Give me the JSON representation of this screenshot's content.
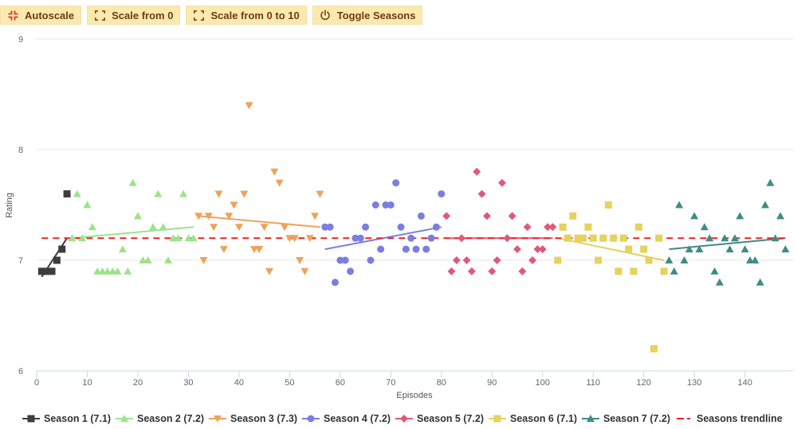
{
  "toolbar": {
    "buttons": [
      {
        "label": "Autoscale",
        "icon": "shrink-icon",
        "icon_color": "#d0392b"
      },
      {
        "label": "Scale from 0",
        "icon": "expand-icon",
        "icon_color": "#7a4a22"
      },
      {
        "label": "Scale from 0 to 10",
        "icon": "expand-icon",
        "icon_color": "#7a4a22"
      },
      {
        "label": "Toggle Seasons",
        "icon": "power-icon",
        "icon_color": "#7a4a22"
      }
    ]
  },
  "chart_data": {
    "type": "scatter",
    "title": "",
    "xlabel": "Episodes",
    "ylabel": "Rating",
    "xlim": [
      0,
      149.5
    ],
    "ylim": [
      6,
      9
    ],
    "x_ticks": [
      "0",
      "10",
      "20",
      "30",
      "40",
      "50",
      "60",
      "70",
      "80",
      "90",
      "100",
      "110",
      "120",
      "130",
      "140"
    ],
    "y_ticks": [
      "6",
      "7",
      "8",
      "9"
    ],
    "grid": "horizontal",
    "legend_position": "bottom",
    "series": [
      {
        "name": "Season 1 (7.1)",
        "color": "#3d3d3d",
        "marker": "square",
        "x": [
          1,
          2,
          3,
          4,
          5,
          6
        ],
        "y": [
          6.9,
          6.9,
          6.9,
          7.0,
          7.1,
          7.6
        ],
        "trend": [
          [
            1,
            6.85
          ],
          [
            6,
            7.2
          ]
        ]
      },
      {
        "name": "Season 2 (7.2)",
        "color": "#9de38a",
        "marker": "triangle-up",
        "x": [
          7,
          8,
          9,
          10,
          11,
          12,
          13,
          14,
          15,
          16,
          17,
          18,
          19,
          20,
          21,
          22,
          23,
          24,
          25,
          26,
          27,
          28,
          29,
          30,
          31
        ],
        "y": [
          7.2,
          7.6,
          7.2,
          7.5,
          7.3,
          6.9,
          6.9,
          6.9,
          6.9,
          6.9,
          7.1,
          6.9,
          7.7,
          7.4,
          7.0,
          7.0,
          7.3,
          7.6,
          7.3,
          7.0,
          7.2,
          7.2,
          7.6,
          7.2,
          7.2
        ],
        "trend": [
          [
            7,
            7.2
          ],
          [
            31,
            7.3
          ]
        ]
      },
      {
        "name": "Season 3 (7.3)",
        "color": "#eea25a",
        "marker": "triangle-down",
        "x": [
          32,
          33,
          34,
          35,
          36,
          37,
          38,
          39,
          40,
          41,
          42,
          43,
          44,
          45,
          46,
          47,
          48,
          49,
          50,
          51,
          52,
          53,
          54,
          55,
          56
        ],
        "y": [
          7.4,
          7.0,
          7.4,
          7.3,
          7.6,
          7.1,
          7.4,
          7.5,
          7.3,
          7.6,
          8.4,
          7.1,
          7.1,
          7.3,
          6.9,
          7.8,
          7.7,
          7.3,
          7.2,
          7.2,
          7.0,
          6.9,
          7.2,
          7.4,
          7.6
        ],
        "trend": [
          [
            32,
            7.4
          ],
          [
            56,
            7.3
          ]
        ]
      },
      {
        "name": "Season 4 (7.2)",
        "color": "#7b7ee0",
        "marker": "circle",
        "x": [
          57,
          58,
          59,
          60,
          61,
          62,
          63,
          64,
          65,
          66,
          67,
          68,
          69,
          70,
          71,
          72,
          73,
          74,
          75,
          76,
          77,
          78,
          79,
          80
        ],
        "y": [
          7.3,
          7.3,
          6.8,
          7.0,
          7.0,
          6.9,
          7.2,
          7.2,
          7.3,
          7.0,
          7.5,
          7.1,
          7.5,
          7.5,
          7.7,
          7.3,
          7.1,
          7.2,
          7.1,
          7.4,
          7.1,
          7.2,
          7.3,
          7.6
        ],
        "trend": [
          [
            57,
            7.1
          ],
          [
            80,
            7.3
          ]
        ]
      },
      {
        "name": "Season 5 (7.2)",
        "color": "#e2587a",
        "marker": "diamond",
        "x": [
          81,
          82,
          83,
          84,
          85,
          86,
          87,
          88,
          89,
          90,
          91,
          92,
          93,
          94,
          95,
          96,
          97,
          98,
          99,
          100,
          101,
          102
        ],
        "y": [
          7.4,
          6.9,
          7.0,
          7.2,
          7.0,
          6.9,
          7.8,
          7.6,
          7.4,
          6.9,
          7.0,
          7.7,
          7.2,
          7.4,
          7.1,
          6.9,
          7.3,
          7.0,
          7.1,
          7.1,
          7.3,
          7.3
        ],
        "trend": [
          [
            81,
            7.2
          ],
          [
            102,
            7.2
          ]
        ]
      },
      {
        "name": "Season 6 (7.1)",
        "color": "#e6d25e",
        "marker": "square",
        "x": [
          103,
          104,
          105,
          106,
          107,
          108,
          109,
          110,
          111,
          112,
          113,
          114,
          115,
          116,
          117,
          118,
          119,
          120,
          121,
          122,
          123,
          124
        ],
        "y": [
          7.0,
          7.3,
          7.2,
          7.4,
          7.2,
          7.2,
          7.3,
          7.2,
          7.0,
          7.2,
          7.5,
          7.2,
          6.9,
          7.2,
          7.1,
          6.9,
          7.3,
          7.1,
          7.0,
          6.2,
          7.2,
          6.9
        ],
        "trend": [
          [
            103,
            7.2
          ],
          [
            124,
            7.0
          ]
        ]
      },
      {
        "name": "Season 7 (7.2)",
        "color": "#3f8c86",
        "marker": "triangle-up",
        "x": [
          125,
          126,
          127,
          128,
          129,
          130,
          131,
          132,
          133,
          134,
          135,
          136,
          137,
          138,
          139,
          140,
          141,
          142,
          143,
          144,
          145,
          146,
          147,
          148
        ],
        "y": [
          7.0,
          6.9,
          7.5,
          7.0,
          7.1,
          7.4,
          7.1,
          7.3,
          7.2,
          6.9,
          6.8,
          7.2,
          7.1,
          7.2,
          7.4,
          7.1,
          7.0,
          7.0,
          6.8,
          7.5,
          7.7,
          7.2,
          7.4,
          7.1
        ],
        "trend": [
          [
            125,
            7.1
          ],
          [
            148,
            7.2
          ]
        ]
      }
    ],
    "overall_trend": {
      "name": "Seasons trendline",
      "color": "#ee2222",
      "points": [
        [
          1,
          7.2
        ],
        [
          148,
          7.2
        ]
      ]
    }
  }
}
